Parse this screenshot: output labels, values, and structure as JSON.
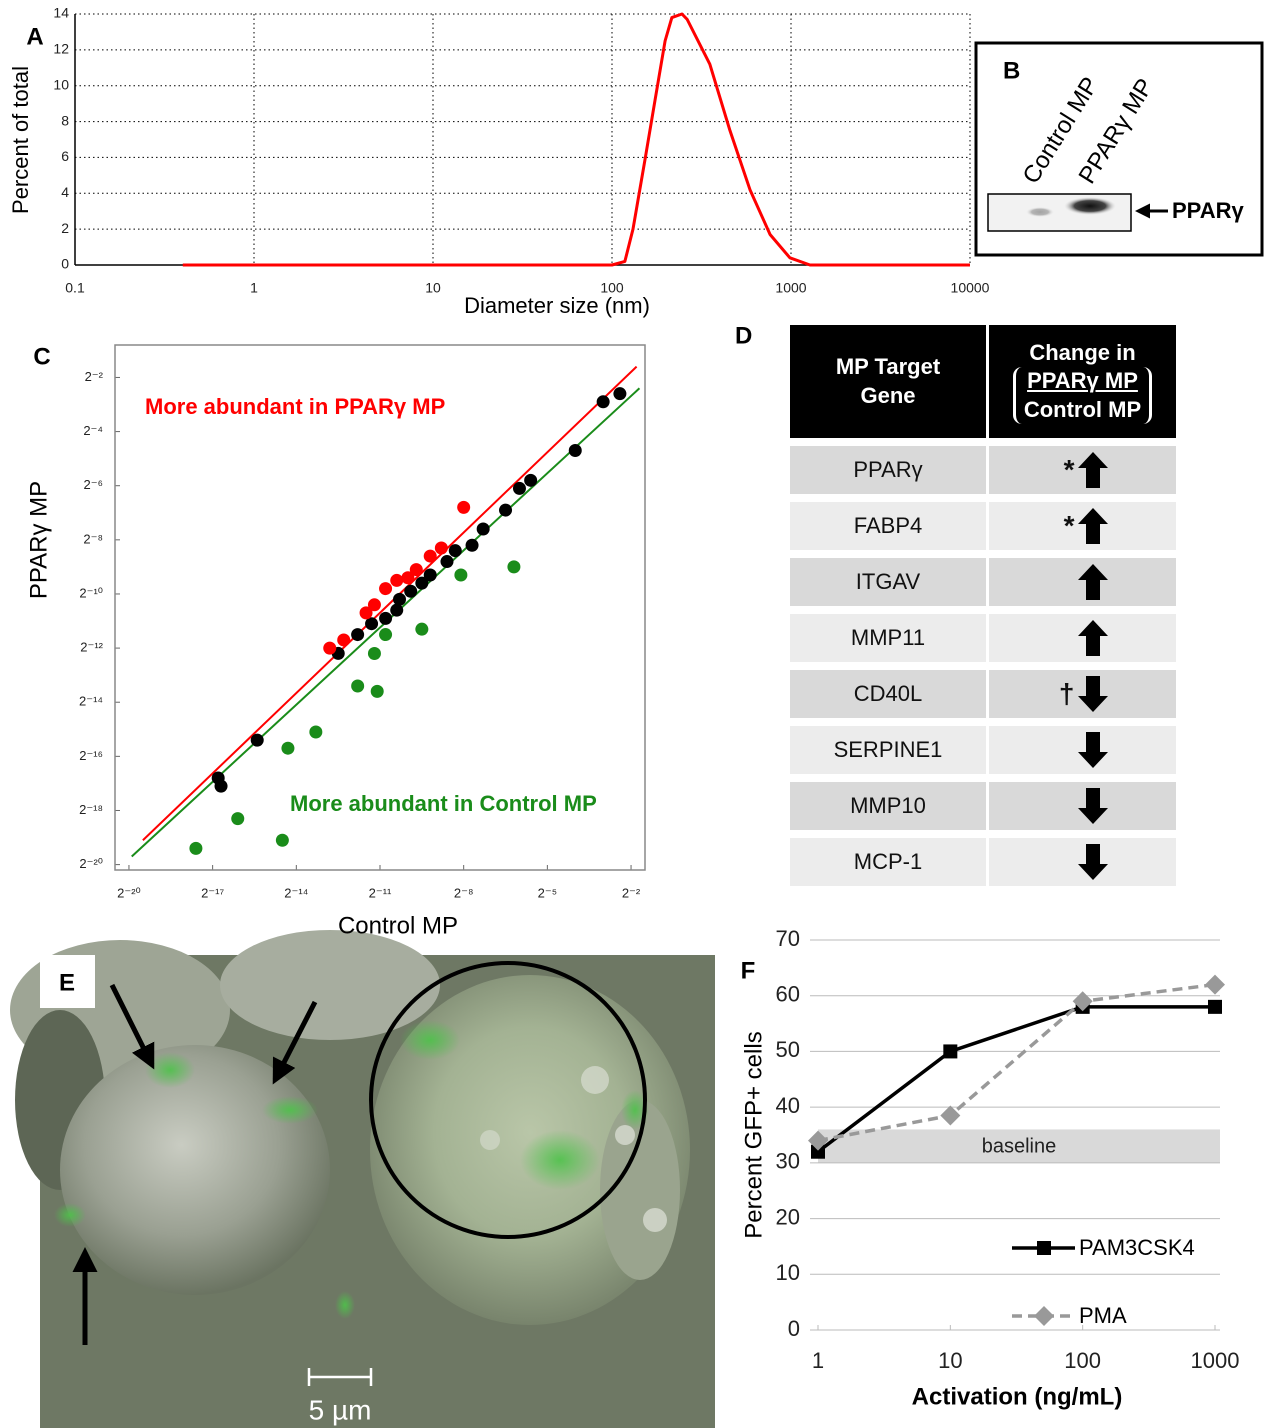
{
  "chart_data": [
    {
      "type": "line",
      "panel_label": "A",
      "xlabel": "Diameter size (nm)",
      "ylabel": "Percent of total",
      "xscale": "log",
      "xlim": [
        0.1,
        10000
      ],
      "xticks": [
        0.1,
        1,
        10,
        100,
        1000,
        10000
      ],
      "ylim": [
        0,
        14
      ],
      "yticks": [
        0,
        2,
        4,
        6,
        8,
        10,
        12,
        14
      ],
      "grid": "dotted",
      "color": "#ff0000",
      "x": [
        0.4,
        100,
        118,
        131,
        153,
        174,
        198,
        216,
        246,
        263,
        352,
        456,
        590,
        764,
        986,
        1277,
        10000
      ],
      "values": [
        0,
        0,
        0.2,
        2,
        5.9,
        9.2,
        12.5,
        13.8,
        14,
        13.7,
        11.2,
        7.5,
        4.2,
        1.7,
        0.4,
        0,
        0
      ]
    },
    {
      "type": "scatter",
      "panel_label": "C",
      "xlabel": "Control MP",
      "ylabel": "PPARγ MP",
      "xscale": "log",
      "yscale": "log",
      "xlim": [
        6.743e-07,
        0.3536
      ],
      "ylim": [
        8.306e-07,
        0.574
      ],
      "xticks": [
        {
          "value": 9.5367431640625e-07,
          "label": "2⁻²⁰"
        },
        {
          "value": 7.62939453125e-06,
          "label": "2⁻¹⁷"
        },
        {
          "value": 6.103515625e-05,
          "label": "2⁻¹⁴"
        },
        {
          "value": 0.00048828125,
          "label": "2⁻¹¹"
        },
        {
          "value": 0.00390625,
          "label": "2⁻⁸"
        },
        {
          "value": 0.03125,
          "label": "2⁻⁵"
        },
        {
          "value": 0.25,
          "label": "2⁻²"
        }
      ],
      "yticks": [
        {
          "value": 9.5367431640625e-07,
          "label": "2⁻²⁰"
        },
        {
          "value": 3.814697265625e-06,
          "label": "2⁻¹⁸"
        },
        {
          "value": 1.52587890625e-05,
          "label": "2⁻¹⁶"
        },
        {
          "value": 6.103515625e-05,
          "label": "2⁻¹⁴"
        },
        {
          "value": 0.000244140625,
          "label": "2⁻¹²"
        },
        {
          "value": 0.0009765625,
          "label": "2⁻¹⁰"
        },
        {
          "value": 0.00390625,
          "label": "2⁻⁸"
        },
        {
          "value": 0.015625,
          "label": "2⁻⁶"
        },
        {
          "value": 0.0625,
          "label": "2⁻⁴"
        },
        {
          "value": 0.25,
          "label": "2⁻²"
        }
      ],
      "series": [
        {
          "color": "#000000",
          "x": [
            8.76e-06,
            9.4e-06,
            2.31e-05,
            0.000173,
            0.00028,
            0.000396,
            0.000561,
            0.00074,
            0.000793,
            0.001047,
            0.001381,
            0.001701,
            0.00258,
            0.00317,
            0.00481,
            0.00634,
            0.01105,
            0.015625,
            0.02063,
            0.0625,
            0.125,
            0.1895
          ],
          "values": [
            8.76e-06,
            7.12e-06,
            2.31e-05,
            0.000213,
            0.000345,
            0.000456,
            0.000523,
            0.000645,
            0.000851,
            0.001047,
            0.001289,
            0.001586,
            0.00224,
            0.00296,
            0.0034,
            0.00516,
            0.00837,
            0.01458,
            0.01794,
            0.0385,
            0.134,
            0.165
          ]
        },
        {
          "color": "#ff0000",
          "x": [
            0.0001401,
            0.0001982,
            0.0003453,
            0.0004253,
            0.0005606,
            0.0007402,
            0.0009766,
            0.001203,
            0.001701,
            0.002242,
            0.003906
          ],
          "values": [
            0.0002441,
            0.0003008,
            0.0006016,
            0.0007402,
            0.001121,
            0.001381,
            0.00148,
            0.001822,
            0.002578,
            0.003172,
            0.00897
          ]
        },
        {
          "color": "#1a8c1a",
          "x": [
            5.035e-06,
            1.424e-05,
            4.316e-05,
            4.956e-05,
            9.914e-05,
            0.0002803,
            0.0004556,
            0.0004253,
            0.0005606,
            0.001381,
            0.003644,
            0.01361
          ],
          "values": [
            1.446e-06,
            3.098e-06,
            1.779e-06,
            1.88e-05,
            2.848e-05,
            9.255e-05,
            8.059e-05,
            0.0002126,
            0.0003453,
            0.0003965,
            0.001586,
            0.001953
          ]
        }
      ],
      "lines": [
        {
          "color": "#ff0000",
          "x": [
            1.348e-06,
            0.287
          ],
          "y": [
            1.779e-06,
            0.33
          ]
        },
        {
          "color": "#1a8c1a",
          "x": [
            1.022e-06,
            0.308
          ],
          "y": [
            1.175e-06,
            0.1895
          ]
        }
      ],
      "annotations": [
        {
          "text": "More abundant in PPARγ MP",
          "color": "#ff0000"
        },
        {
          "text": "More abundant in Control MP",
          "color": "#1a8c1a"
        }
      ]
    },
    {
      "type": "line",
      "panel_label": "F",
      "xlabel": "Activation (ng/mL)",
      "ylabel": "Percent GFP+ cells",
      "xscale": "log",
      "xlim": [
        1,
        1000
      ],
      "xticks": [
        1,
        10,
        100,
        1000
      ],
      "ylim": [
        0,
        70
      ],
      "yticks": [
        0,
        10,
        20,
        30,
        40,
        50,
        60,
        70
      ],
      "grid": true,
      "legend": "lower right",
      "x": [
        1,
        10,
        100,
        1000
      ],
      "series": [
        {
          "name": "PAM3CSK4",
          "color": "#000000",
          "marker": "square",
          "values": [
            32,
            50,
            58,
            58
          ]
        },
        {
          "name": "PMA",
          "color": "#999999",
          "marker": "diamond",
          "dash": true,
          "values": [
            34,
            38.5,
            59,
            62
          ]
        }
      ],
      "bands": [
        {
          "label": "baseline",
          "range": [
            30,
            36
          ],
          "color": "#d9d9d9"
        }
      ]
    }
  ],
  "blot": {
    "panel_label": "B",
    "lanes": [
      "Control MP",
      "PPARγ MP"
    ],
    "band_label": "PPARγ"
  },
  "table": {
    "panel_label": "D",
    "header": {
      "gene": "MP Target Gene",
      "change": "Change in",
      "numerator": "PPARγ MP",
      "denominator": "Control MP"
    },
    "rows": [
      {
        "gene": "PPARγ",
        "mark": "*"
      },
      {
        "gene": "FABP4",
        "mark": "*"
      },
      {
        "gene": "ITGAV"
      },
      {
        "gene": "MMP11"
      },
      {
        "gene": "CD40L",
        "mark": "†"
      },
      {
        "gene": "SERPINE1"
      },
      {
        "gene": "MMP10"
      },
      {
        "gene": "MCP-1"
      }
    ]
  },
  "micrograph": {
    "panel_label": "E",
    "scale_bar": "5 µm"
  }
}
